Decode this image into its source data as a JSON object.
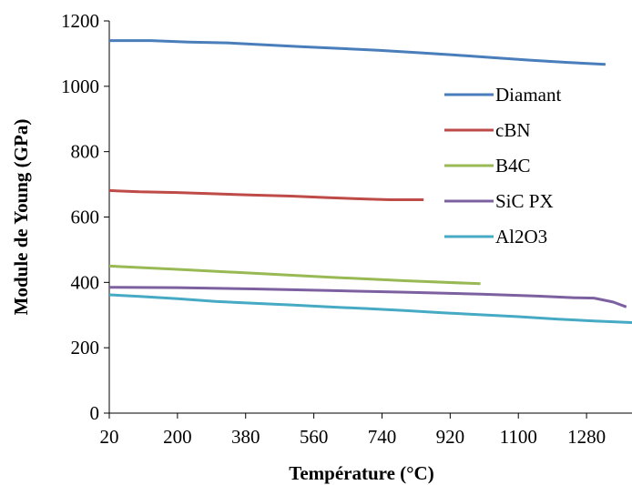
{
  "chart_data": {
    "type": "line",
    "title": "",
    "xlabel": "Température (°C)",
    "ylabel": "Module de Young (GPa)",
    "xlim": [
      20,
      1400
    ],
    "ylim": [
      0,
      1200
    ],
    "x_ticks": [
      20,
      200,
      380,
      560,
      740,
      920,
      1100,
      1280
    ],
    "y_ticks": [
      0,
      200,
      400,
      600,
      800,
      1000,
      1200
    ],
    "grid": false,
    "legend_position": "right",
    "series": [
      {
        "name": "Diamant",
        "color": "#4a7ebb",
        "points": [
          [
            20,
            1140
          ],
          [
            130,
            1140
          ],
          [
            230,
            1135
          ],
          [
            330,
            1133
          ],
          [
            430,
            1127
          ],
          [
            530,
            1121
          ],
          [
            630,
            1116
          ],
          [
            730,
            1110
          ],
          [
            830,
            1103
          ],
          [
            930,
            1096
          ],
          [
            1030,
            1088
          ],
          [
            1130,
            1080
          ],
          [
            1230,
            1073
          ],
          [
            1330,
            1067
          ]
        ]
      },
      {
        "name": "cBN",
        "color": "#be4b48",
        "points": [
          [
            20,
            681
          ],
          [
            100,
            677
          ],
          [
            200,
            675
          ],
          [
            300,
            671
          ],
          [
            400,
            667
          ],
          [
            500,
            664
          ],
          [
            600,
            659
          ],
          [
            700,
            655
          ],
          [
            760,
            653
          ],
          [
            850,
            653
          ]
        ]
      },
      {
        "name": "B4C",
        "color": "#98b954",
        "points": [
          [
            20,
            450
          ],
          [
            200,
            440
          ],
          [
            400,
            428
          ],
          [
            600,
            416
          ],
          [
            800,
            405
          ],
          [
            1000,
            396
          ]
        ]
      },
      {
        "name": "SiC PX",
        "color": "#7d60a0",
        "points": [
          [
            20,
            385
          ],
          [
            200,
            384
          ],
          [
            400,
            380
          ],
          [
            600,
            375
          ],
          [
            800,
            370
          ],
          [
            1000,
            364
          ],
          [
            1150,
            358
          ],
          [
            1250,
            353
          ],
          [
            1300,
            352
          ],
          [
            1350,
            340
          ],
          [
            1385,
            325
          ]
        ]
      },
      {
        "name": "Al2O3",
        "color": "#46aac5",
        "points": [
          [
            20,
            362
          ],
          [
            100,
            357
          ],
          [
            200,
            350
          ],
          [
            300,
            342
          ],
          [
            400,
            336
          ],
          [
            500,
            331
          ],
          [
            600,
            325
          ],
          [
            700,
            320
          ],
          [
            800,
            314
          ],
          [
            900,
            307
          ],
          [
            1000,
            301
          ],
          [
            1100,
            295
          ],
          [
            1200,
            288
          ],
          [
            1300,
            282
          ],
          [
            1400,
            277
          ]
        ]
      }
    ]
  }
}
